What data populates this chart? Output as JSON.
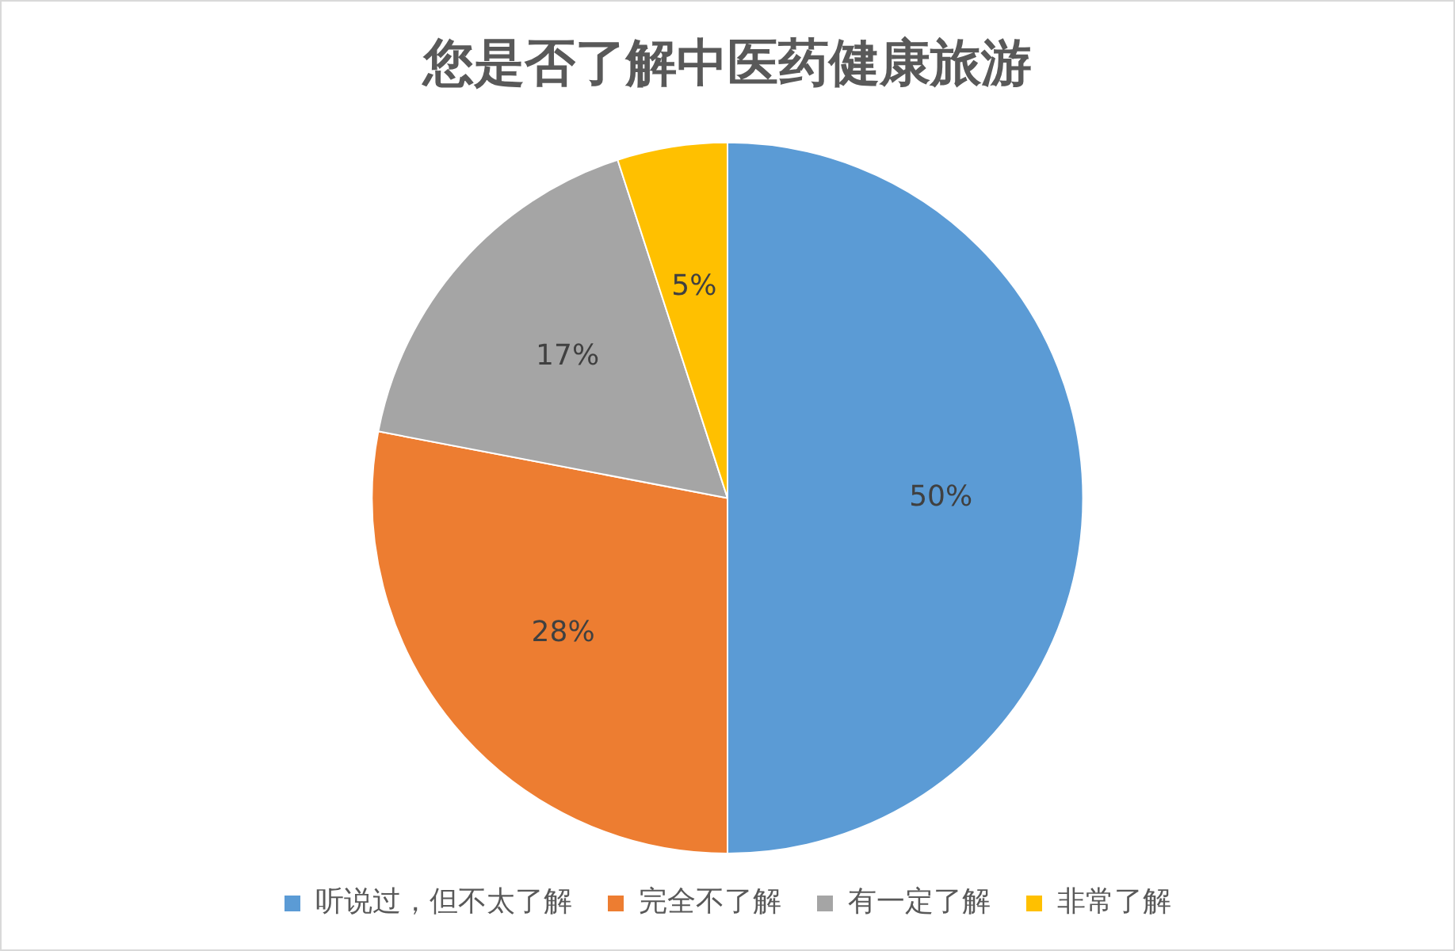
{
  "chart_data": {
    "type": "pie",
    "title": "您是否了解中医药健康旅游",
    "categories": [
      "听说过，但不太了解",
      "完全不了解",
      "有一定了解",
      "非常了解"
    ],
    "values": [
      50,
      28,
      17,
      5
    ],
    "value_labels": [
      "50%",
      "28%",
      "17%",
      "5%"
    ],
    "colors": [
      "#5b9bd5",
      "#ed7d31",
      "#a5a5a5",
      "#ffc000"
    ],
    "legend": "bottom"
  }
}
